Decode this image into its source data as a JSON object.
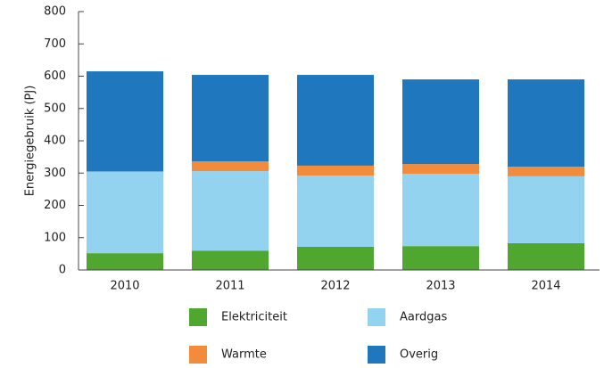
{
  "chart_data": {
    "type": "stacked_bar",
    "y_label": "Energiegebruik (PJ)",
    "categories": [
      "2010",
      "2011",
      "2012",
      "2013",
      "2014"
    ],
    "series": [
      {
        "name": "Elektriciteit",
        "color": "#4fa72f",
        "values": [
          52,
          60,
          72,
          74,
          83
        ]
      },
      {
        "name": "Aardgas",
        "color": "#94d3ef",
        "values": [
          253,
          246,
          220,
          224,
          207
        ]
      },
      {
        "name": "Warmte",
        "color": "#f28c3c",
        "values": [
          0,
          30,
          31,
          30,
          30
        ]
      },
      {
        "name": "Overig",
        "color": "#1f77bd",
        "values": [
          310,
          268,
          281,
          262,
          270
        ]
      }
    ],
    "ylim": [
      0,
      800
    ],
    "yticks": [
      0,
      100,
      200,
      300,
      400,
      500,
      600,
      700,
      800
    ],
    "grid": false
  }
}
